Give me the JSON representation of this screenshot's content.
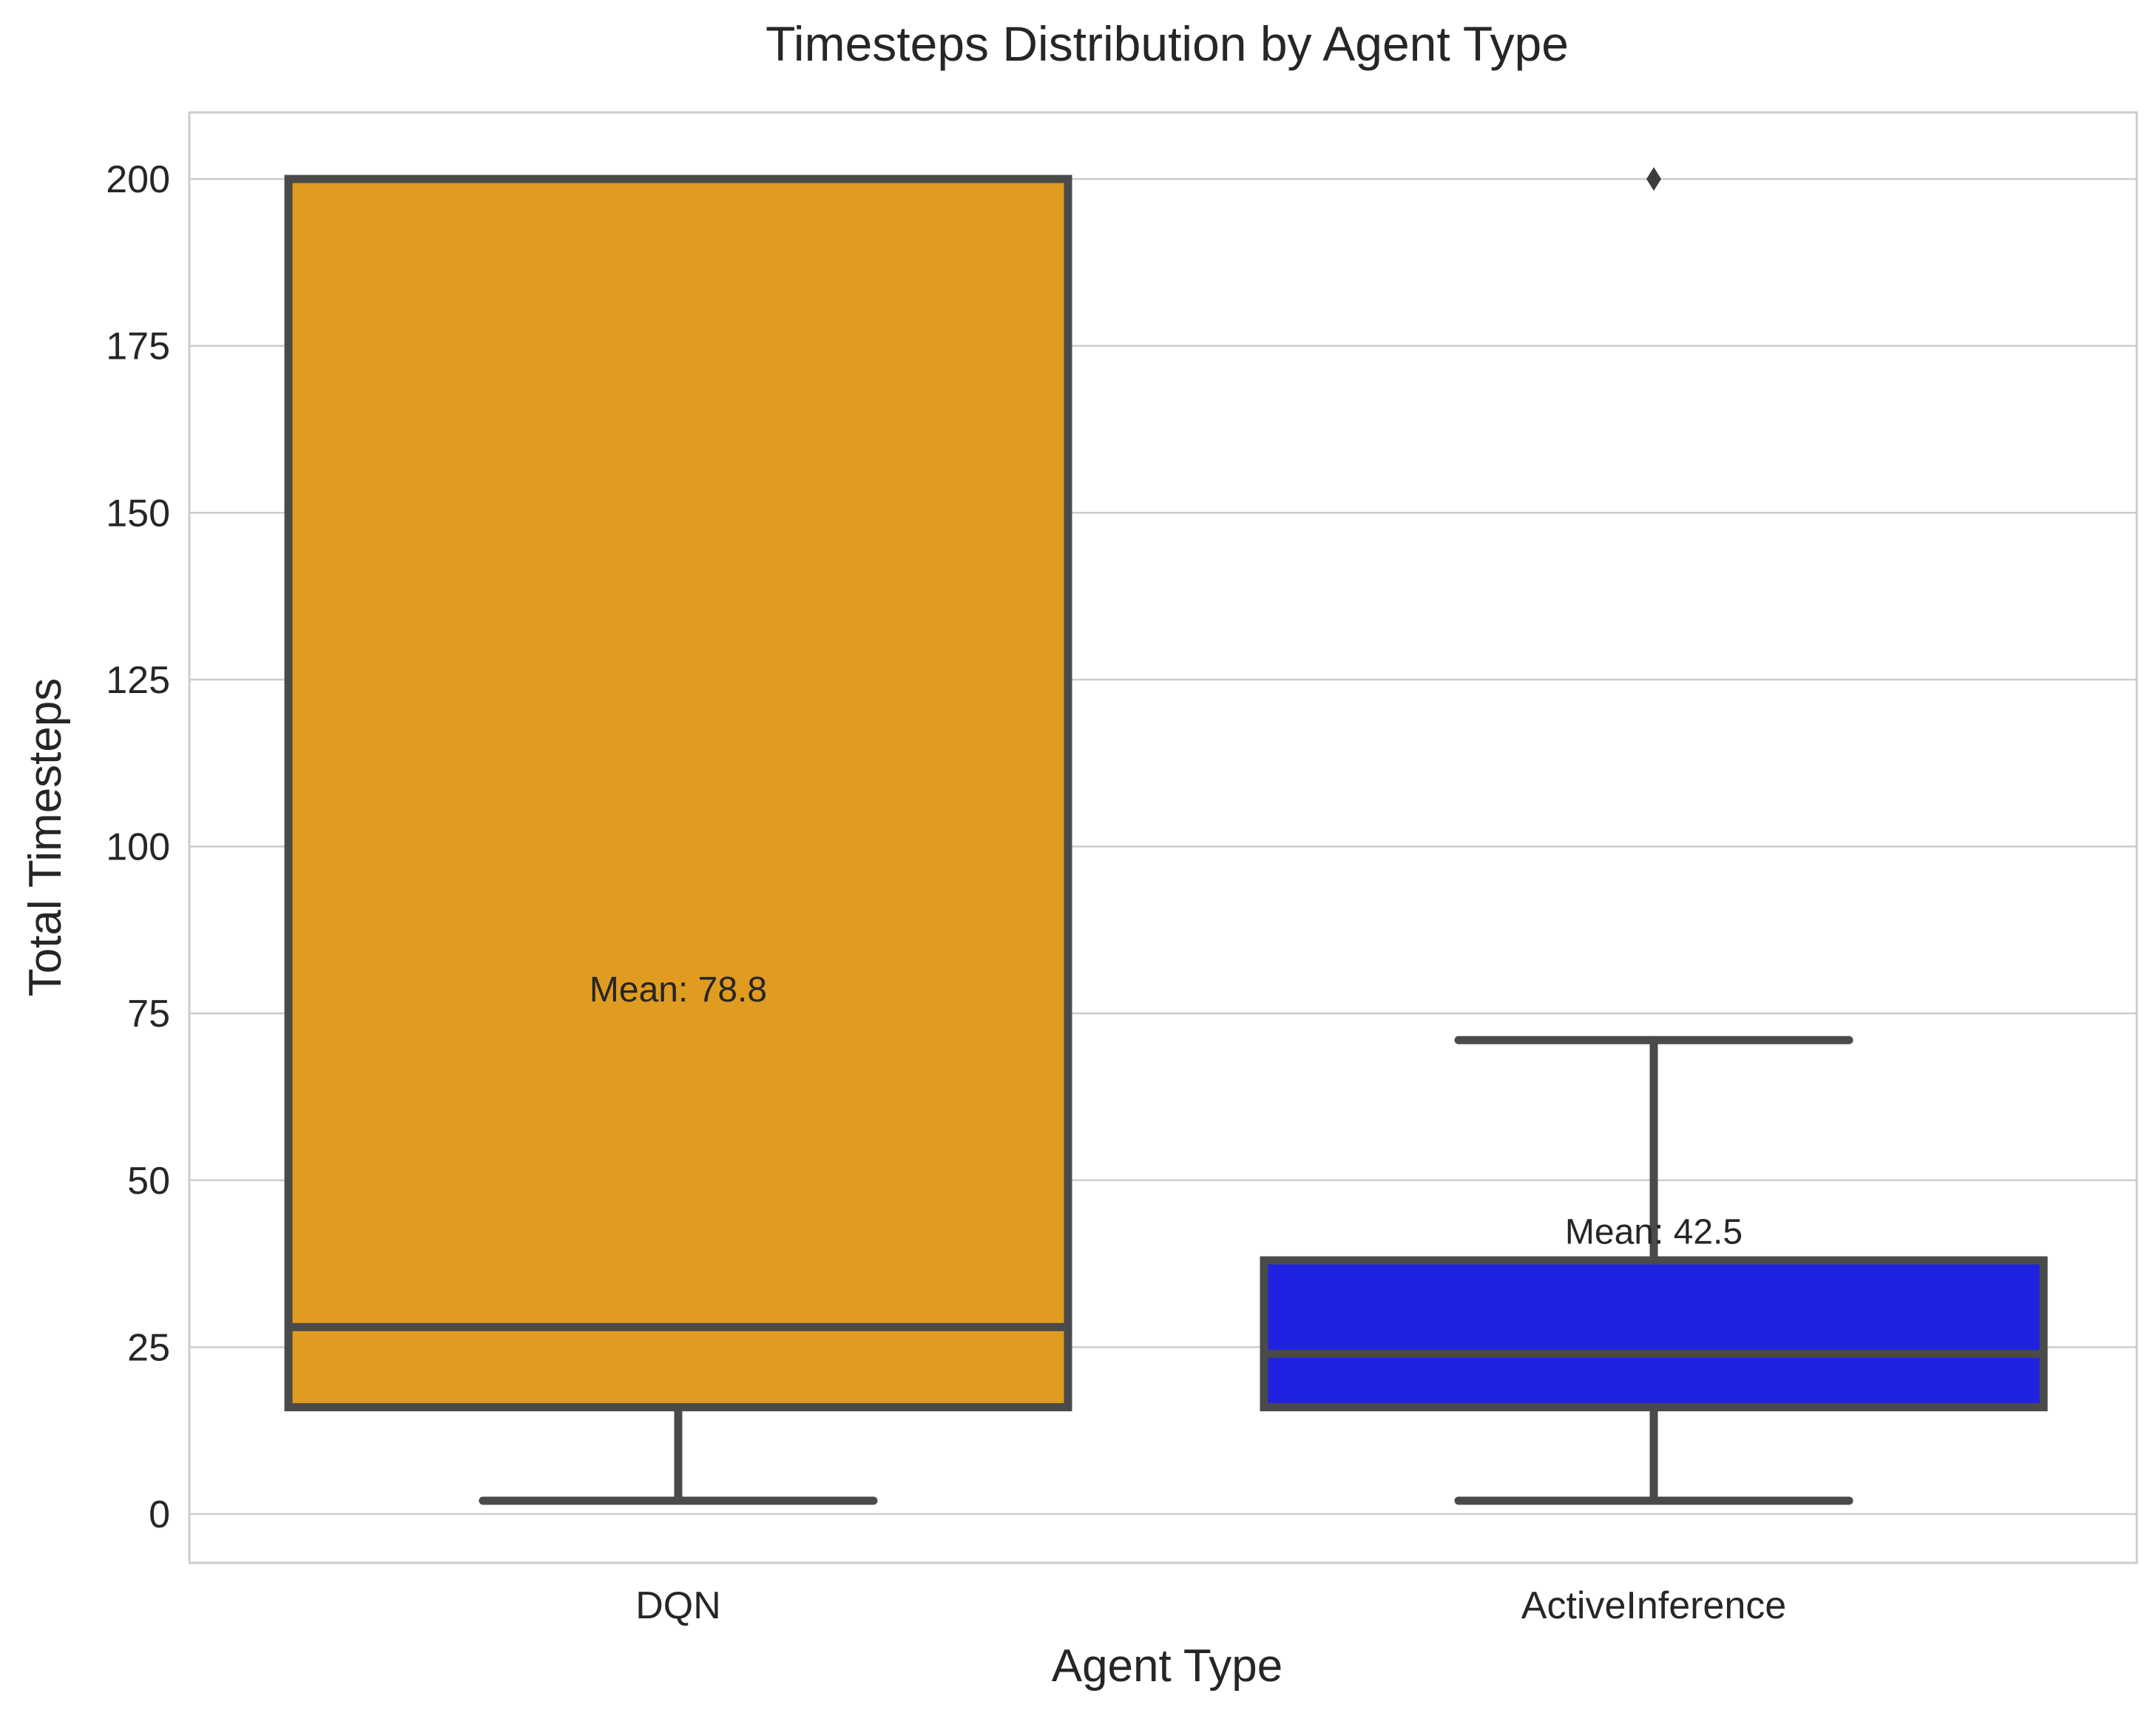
{
  "chart_data": {
    "type": "box",
    "title": "Timesteps Distribution by Agent Type",
    "xlabel": "Agent Type",
    "ylabel": "Total Timesteps",
    "ylim": [
      -8,
      210
    ],
    "yticks": [
      0,
      25,
      50,
      75,
      100,
      125,
      150,
      175,
      200
    ],
    "grid": "horizontal",
    "categories": [
      "DQN",
      "ActiveInference"
    ],
    "boxes": [
      {
        "category": "DQN",
        "color": "#E09C20",
        "whisker_low": 2,
        "q1": 16,
        "median": 28,
        "q3": 200,
        "whisker_high": 200,
        "outliers": [],
        "mean": 78.8,
        "mean_label": "Mean: 78.8"
      },
      {
        "category": "ActiveInference",
        "color": "#1F22E0",
        "whisker_low": 2,
        "q1": 16,
        "median": 24,
        "q3": 38,
        "whisker_high": 71,
        "outliers": [
          200
        ],
        "mean": 42.5,
        "mean_label": "Mean: 42.5"
      }
    ]
  }
}
